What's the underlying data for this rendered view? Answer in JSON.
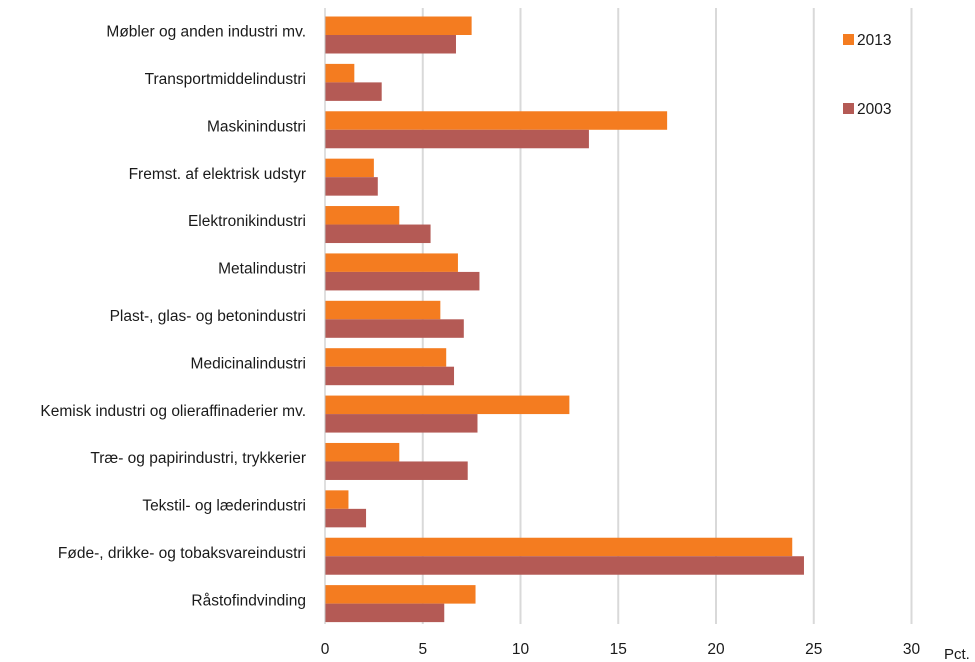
{
  "chart_data": {
    "type": "bar",
    "orientation": "horizontal",
    "categories": [
      "Møbler og anden industri mv.",
      "Transportmiddelindustri",
      "Maskinindustri",
      "Fremst. af elektrisk udstyr",
      "Elektronikindustri",
      "Metalindustri",
      "Plast-, glas- og betonindustri",
      "Medicinalindustri",
      "Kemisk industri og olieraffinaderier mv.",
      "Træ- og papirindustri, trykkerier",
      "Tekstil- og læderindustri",
      "Føde-, drikke- og tobaksvareindustri",
      "Råstofindvinding"
    ],
    "series": [
      {
        "name": "2013",
        "color": "#f47c20",
        "values": [
          7.5,
          1.5,
          17.5,
          2.5,
          3.8,
          6.8,
          5.9,
          6.2,
          12.5,
          3.8,
          1.2,
          23.9,
          7.7
        ]
      },
      {
        "name": "2003",
        "color": "#b45a55",
        "values": [
          6.7,
          2.9,
          13.5,
          2.7,
          5.4,
          7.9,
          7.1,
          6.6,
          7.8,
          7.3,
          2.1,
          24.5,
          6.1
        ]
      }
    ],
    "xlim": [
      0,
      30
    ],
    "xticks": [
      "0",
      "5",
      "10",
      "15",
      "20",
      "25",
      "30"
    ],
    "xunit": "Pct.",
    "grid": "vertical",
    "legend_position": "top-right"
  }
}
